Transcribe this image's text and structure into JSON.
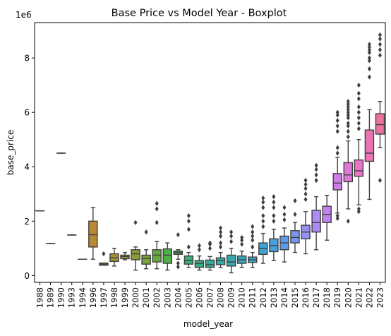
{
  "chart_data": {
    "type": "box",
    "title": "Base Price vs Model Year - Boxplot",
    "xlabel": "model_year",
    "ylabel": "base_price",
    "y_scale_label": "1e6",
    "ylim": [
      -0.25,
      9.3
    ],
    "yticks": [
      0,
      2,
      4,
      6,
      8
    ],
    "categories": [
      "1988",
      "1989",
      "1990",
      "1993",
      "1994",
      "1996",
      "1997",
      "1998",
      "1999",
      "2000",
      "2001",
      "2002",
      "2003",
      "2004",
      "2005",
      "2006",
      "2007",
      "2008",
      "2009",
      "2010",
      "2011",
      "2012",
      "2013",
      "2014",
      "2015",
      "2016",
      "2017",
      "2018",
      "2019",
      "2020",
      "2021",
      "2022",
      "2023"
    ],
    "boxes": [
      {
        "year": "1988",
        "min": 2.38,
        "q1": 2.38,
        "median": 2.38,
        "q3": 2.38,
        "max": 2.38,
        "outliers": [],
        "color": "#e8705f"
      },
      {
        "year": "1989",
        "min": 1.18,
        "q1": 1.18,
        "median": 1.18,
        "q3": 1.18,
        "max": 1.18,
        "outliers": [],
        "color": "#e2735a"
      },
      {
        "year": "1990",
        "min": 4.5,
        "q1": 4.5,
        "median": 4.5,
        "q3": 4.5,
        "max": 4.5,
        "outliers": [],
        "color": "#dc7650"
      },
      {
        "year": "1993",
        "min": 1.49,
        "q1": 1.49,
        "median": 1.49,
        "q3": 1.49,
        "max": 1.49,
        "outliers": [],
        "color": "#d07c3c"
      },
      {
        "year": "1994",
        "min": 0.6,
        "q1": 0.6,
        "median": 0.6,
        "q3": 0.6,
        "max": 0.6,
        "outliers": [],
        "color": "#c8822e"
      },
      {
        "year": "1996",
        "min": 0.6,
        "q1": 1.05,
        "median": 1.5,
        "q3": 2.0,
        "max": 2.5,
        "outliers": [],
        "color": "#b88a36"
      },
      {
        "year": "1997",
        "min": 0.38,
        "q1": 0.38,
        "median": 0.42,
        "q3": 0.46,
        "max": 0.46,
        "outliers": [
          0.8
        ],
        "color": "#b08e36"
      },
      {
        "year": "1998",
        "min": 0.35,
        "q1": 0.52,
        "median": 0.65,
        "q3": 0.8,
        "max": 1.0,
        "outliers": [],
        "color": "#a49434"
      },
      {
        "year": "1999",
        "min": 0.58,
        "q1": 0.62,
        "median": 0.7,
        "q3": 0.75,
        "max": 0.85,
        "outliers": [],
        "color": "#989834"
      },
      {
        "year": "2000",
        "min": 0.2,
        "q1": 0.58,
        "median": 0.8,
        "q3": 0.95,
        "max": 1.05,
        "outliers": [
          1.95
        ],
        "color": "#8e9c38"
      },
      {
        "year": "2001",
        "min": 0.25,
        "q1": 0.42,
        "median": 0.63,
        "q3": 0.75,
        "max": 0.95,
        "outliers": [
          1.6
        ],
        "color": "#7aa43a"
      },
      {
        "year": "2002",
        "min": 0.25,
        "q1": 0.5,
        "median": 0.75,
        "q3": 0.95,
        "max": 1.25,
        "outliers": [
          1.95,
          2.45,
          2.65
        ],
        "color": "#65aa3e"
      },
      {
        "year": "2003",
        "min": 0.2,
        "q1": 0.45,
        "median": 0.75,
        "q3": 0.98,
        "max": 1.2,
        "outliers": [],
        "color": "#4fae46"
      },
      {
        "year": "2004",
        "min": 0.6,
        "q1": 0.78,
        "median": 0.85,
        "q3": 0.9,
        "max": 0.95,
        "outliers": [
          1.5,
          0.45,
          0.32
        ],
        "color": "#3db05e"
      },
      {
        "year": "2005",
        "min": 0.3,
        "q1": 0.42,
        "median": 0.55,
        "q3": 0.72,
        "max": 0.85,
        "outliers": [
          1.05,
          1.7,
          2.0,
          2.2
        ],
        "color": "#38af74"
      },
      {
        "year": "2006",
        "min": 0.2,
        "q1": 0.3,
        "median": 0.45,
        "q3": 0.55,
        "max": 0.72,
        "outliers": [
          1.1,
          0.95
        ],
        "color": "#36ad86"
      },
      {
        "year": "2007",
        "min": 0.2,
        "q1": 0.3,
        "median": 0.4,
        "q3": 0.57,
        "max": 0.7,
        "outliers": [
          1.0,
          1.15,
          1.2
        ],
        "color": "#35ab95"
      },
      {
        "year": "2008",
        "min": 0.3,
        "q1": 0.4,
        "median": 0.55,
        "q3": 0.65,
        "max": 0.85,
        "outliers": [
          1.05,
          1.2,
          1.45,
          1.6,
          1.75
        ],
        "color": "#36aaa3"
      },
      {
        "year": "2009",
        "min": 0.1,
        "q1": 0.35,
        "median": 0.5,
        "q3": 0.75,
        "max": 1.0,
        "outliers": [
          1.25,
          1.45,
          1.6
        ],
        "color": "#38a8b0"
      },
      {
        "year": "2010",
        "min": 0.3,
        "q1": 0.45,
        "median": 0.58,
        "q3": 0.72,
        "max": 0.9,
        "outliers": [
          1.15,
          1.3,
          1.4
        ],
        "color": "#3aa6bc"
      },
      {
        "year": "2011",
        "min": 0.3,
        "q1": 0.48,
        "median": 0.58,
        "q3": 0.68,
        "max": 0.85,
        "outliers": [
          1.05,
          1.3,
          1.45,
          1.6,
          1.8
        ],
        "color": "#3ca4c8"
      },
      {
        "year": "2012",
        "min": 0.45,
        "q1": 0.78,
        "median": 1.0,
        "q3": 1.2,
        "max": 1.55,
        "outliers": [
          1.8,
          2.0,
          2.2,
          2.5,
          2.7,
          2.85
        ],
        "color": "#3ea2d4"
      },
      {
        "year": "2013",
        "min": 0.55,
        "q1": 0.88,
        "median": 1.1,
        "q3": 1.35,
        "max": 1.7,
        "outliers": [
          2.0,
          2.2,
          2.5,
          2.7,
          2.9
        ],
        "color": "#45a0de"
      },
      {
        "year": "2014",
        "min": 0.5,
        "q1": 0.95,
        "median": 1.2,
        "q3": 1.45,
        "max": 1.75,
        "outliers": [
          2.05,
          2.25,
          2.5
        ],
        "color": "#5c9ce8"
      },
      {
        "year": "2015",
        "min": 0.85,
        "q1": 1.2,
        "median": 1.4,
        "q3": 1.65,
        "max": 1.95,
        "outliers": [
          2.25,
          2.75
        ],
        "color": "#7a97ee"
      },
      {
        "year": "2016",
        "min": 0.8,
        "q1": 1.35,
        "median": 1.6,
        "q3": 1.85,
        "max": 2.35,
        "outliers": [
          2.8,
          3.0,
          3.2,
          3.35,
          3.5
        ],
        "color": "#9591f2"
      },
      {
        "year": "2017",
        "min": 0.95,
        "q1": 1.6,
        "median": 1.95,
        "q3": 2.4,
        "max": 2.9,
        "outliers": [
          3.5,
          3.7,
          3.9,
          4.05
        ],
        "color": "#ac8bf2"
      },
      {
        "year": "2018",
        "min": 1.3,
        "q1": 1.95,
        "median": 2.25,
        "q3": 2.55,
        "max": 2.95,
        "outliers": [],
        "color": "#c083f0"
      },
      {
        "year": "2019",
        "min": 2.3,
        "q1": 3.15,
        "median": 3.4,
        "q3": 3.75,
        "max": 4.35,
        "outliers": [
          2.1,
          2.2,
          4.5,
          4.7,
          5.3,
          5.5,
          5.7,
          5.9,
          6.0
        ],
        "color": "#d07ce6"
      },
      {
        "year": "2020",
        "min": 2.45,
        "q1": 3.45,
        "median": 3.7,
        "q3": 4.15,
        "max": 4.95,
        "outliers": [
          2.0,
          5.1,
          5.3,
          5.5,
          5.6,
          5.8,
          5.9,
          6.0,
          6.1,
          6.2,
          6.3,
          6.4
        ],
        "color": "#e277da"
      },
      {
        "year": "2021",
        "min": 2.6,
        "q1": 3.65,
        "median": 3.85,
        "q3": 4.25,
        "max": 5.0,
        "outliers": [
          2.35,
          2.45,
          5.4,
          5.6,
          5.8,
          6.0,
          6.2,
          6.5,
          6.7,
          7.0
        ],
        "color": "#ea74c6"
      },
      {
        "year": "2022",
        "min": 2.8,
        "q1": 4.2,
        "median": 4.5,
        "q3": 5.35,
        "max": 6.1,
        "outliers": [
          7.3,
          7.6,
          7.9,
          8.0,
          8.2,
          8.3,
          8.4,
          8.5
        ],
        "color": "#ec73b2"
      },
      {
        "year": "2023",
        "min": 4.7,
        "q1": 5.2,
        "median": 5.55,
        "q3": 5.95,
        "max": 6.4,
        "outliers": [
          3.5,
          8.1,
          8.3,
          8.5,
          8.7,
          8.85
        ],
        "color": "#ec72a0"
      }
    ]
  }
}
